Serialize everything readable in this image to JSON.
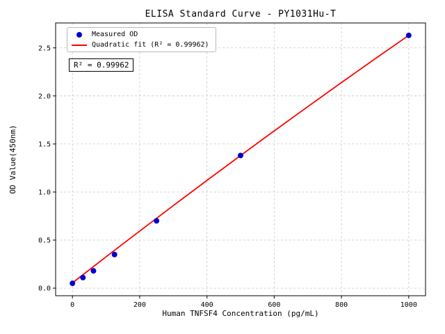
{
  "chart_data": {
    "type": "scatter",
    "title": "ELISA Standard Curve - PY1031Hu-T",
    "xlabel": "Human TNFSF4 Concentration (pg/mL)",
    "ylabel": "OD Value(450nm)",
    "xlim": [
      -50,
      1050
    ],
    "ylim": [
      -0.079,
      2.759
    ],
    "xticks": [
      0,
      200,
      400,
      600,
      800,
      1000
    ],
    "yticks": [
      0,
      0.5,
      1,
      1.5,
      2,
      2.5
    ],
    "grid": true,
    "grid_style": "dashed",
    "legend_position": "upper left",
    "annotation": "R² = 0.99962",
    "series": [
      {
        "name": "Measured OD",
        "type": "scatter",
        "marker": "circle",
        "color": "#0000cd",
        "x": [
          0,
          31.25,
          62.5,
          125,
          250,
          500,
          1000
        ],
        "y": [
          0.05,
          0.11,
          0.18,
          0.35,
          0.7,
          1.38,
          2.63
        ]
      },
      {
        "name": "Quadratic fit (R² = 0.99962)",
        "type": "line",
        "color": "#ff0000",
        "x": [
          0,
          100,
          200,
          300,
          400,
          500,
          600,
          700,
          800,
          900,
          1000
        ],
        "y": [
          0.055,
          0.326,
          0.594,
          0.859,
          1.121,
          1.38,
          1.636,
          1.889,
          2.139,
          2.386,
          2.63
        ]
      }
    ]
  }
}
